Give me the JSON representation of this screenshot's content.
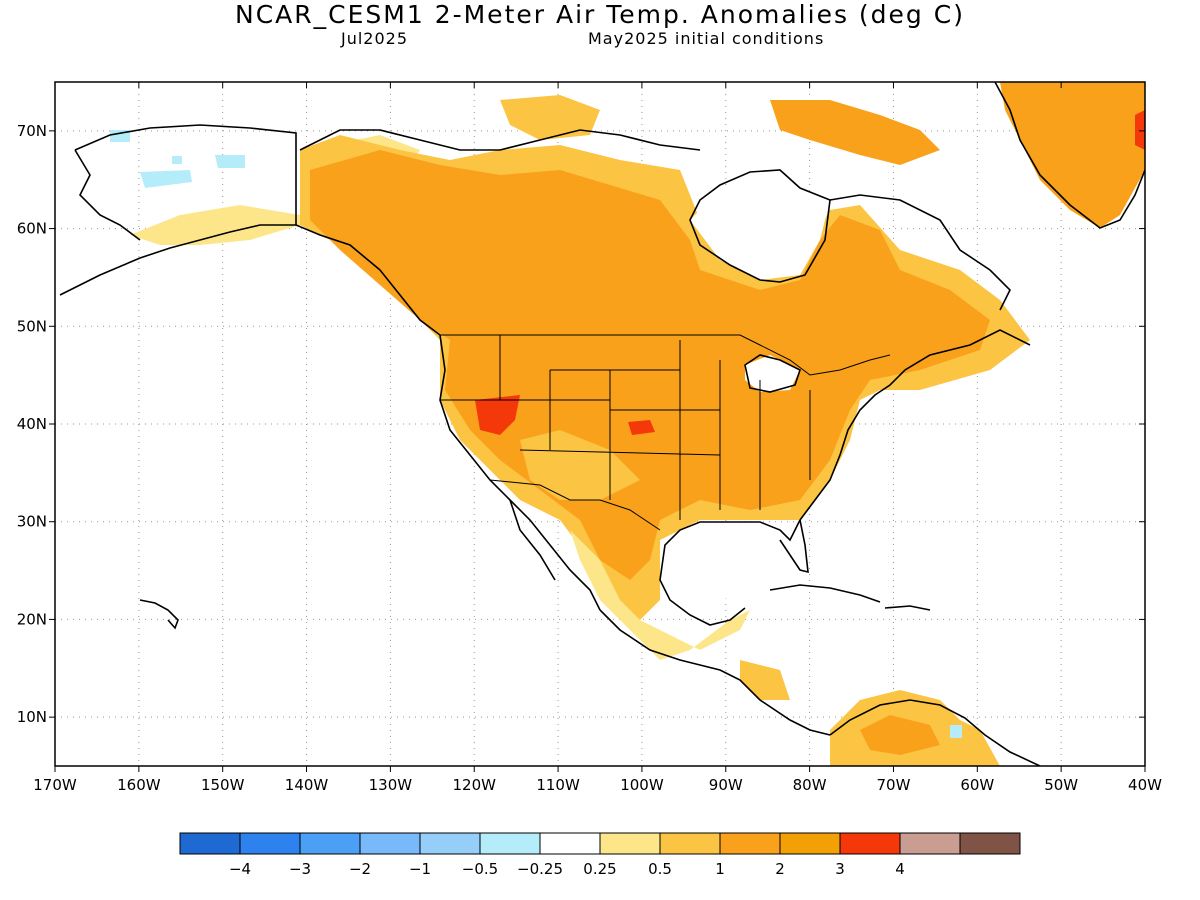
{
  "title": "NCAR_CESM1 2-Meter Air Temp. Anomalies (deg C)",
  "valid_month": "Jul2025",
  "init_text": "May2025 initial conditions",
  "map": {
    "projection": "lat-lon",
    "lon_range": [
      -170,
      -40
    ],
    "lat_range": [
      5,
      75
    ],
    "x_ticks": [
      "170W",
      "160W",
      "150W",
      "140W",
      "130W",
      "120W",
      "110W",
      "100W",
      "90W",
      "80W",
      "70W",
      "60W",
      "50W",
      "40W"
    ],
    "y_ticks": [
      "10N",
      "20N",
      "30N",
      "40N",
      "50N",
      "60N",
      "70N"
    ],
    "grid": "dotted"
  },
  "colorbar": {
    "colors": [
      "#1e6ad2",
      "#2e82ee",
      "#4ba0f6",
      "#78b9fa",
      "#96cefa",
      "#b4ecfa",
      "#ffffff",
      "#fde68a",
      "#fcc443",
      "#f9a11a",
      "#f39f06",
      "#f4380a",
      "#c99d91",
      "#7f5446"
    ],
    "labels": [
      "−4",
      "−3",
      "−2",
      "−1",
      "−0.5",
      "−0.25",
      "0.25",
      "0.5",
      "1",
      "2",
      "3",
      "4"
    ]
  },
  "colors": {
    "anom_025_05": "#fde68a",
    "anom_05_1": "#fcc443",
    "anom_1_2": "#f9a11a",
    "anom_2_3": "#f4380a",
    "anom_neg": "#b4ecfa",
    "coast": "#000000"
  }
}
